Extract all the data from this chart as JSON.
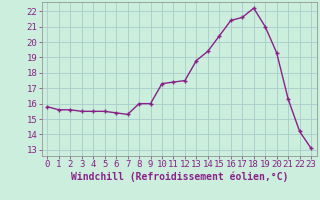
{
  "x": [
    0,
    1,
    2,
    3,
    4,
    5,
    6,
    7,
    8,
    9,
    10,
    11,
    12,
    13,
    14,
    15,
    16,
    17,
    18,
    19,
    20,
    21,
    22,
    23
  ],
  "y": [
    15.8,
    15.6,
    15.6,
    15.5,
    15.5,
    15.5,
    15.4,
    15.3,
    16.0,
    16.0,
    17.3,
    17.4,
    17.5,
    18.8,
    19.4,
    20.4,
    21.4,
    21.6,
    22.2,
    21.0,
    19.3,
    16.3,
    14.2,
    13.1
  ],
  "line_color": "#882288",
  "marker": "+",
  "markersize": 3,
  "linewidth": 1.0,
  "markeredgewidth": 1.0,
  "bg_color": "#cceedd",
  "grid_color": "#aacccc",
  "xlabel": "Windchill (Refroidissement éolien,°C)",
  "xlabel_fontsize": 7,
  "xtick_labels": [
    "0",
    "1",
    "2",
    "3",
    "4",
    "5",
    "6",
    "7",
    "8",
    "9",
    "10",
    "11",
    "12",
    "13",
    "14",
    "15",
    "16",
    "17",
    "18",
    "19",
    "20",
    "21",
    "22",
    "23"
  ],
  "ytick_labels": [
    "13",
    "14",
    "15",
    "16",
    "17",
    "18",
    "19",
    "20",
    "21",
    "22"
  ],
  "ylim": [
    12.6,
    22.6
  ],
  "xlim": [
    -0.5,
    23.5
  ],
  "tick_fontsize": 6.5,
  "tick_color": "#882288",
  "spine_color": "#888888"
}
